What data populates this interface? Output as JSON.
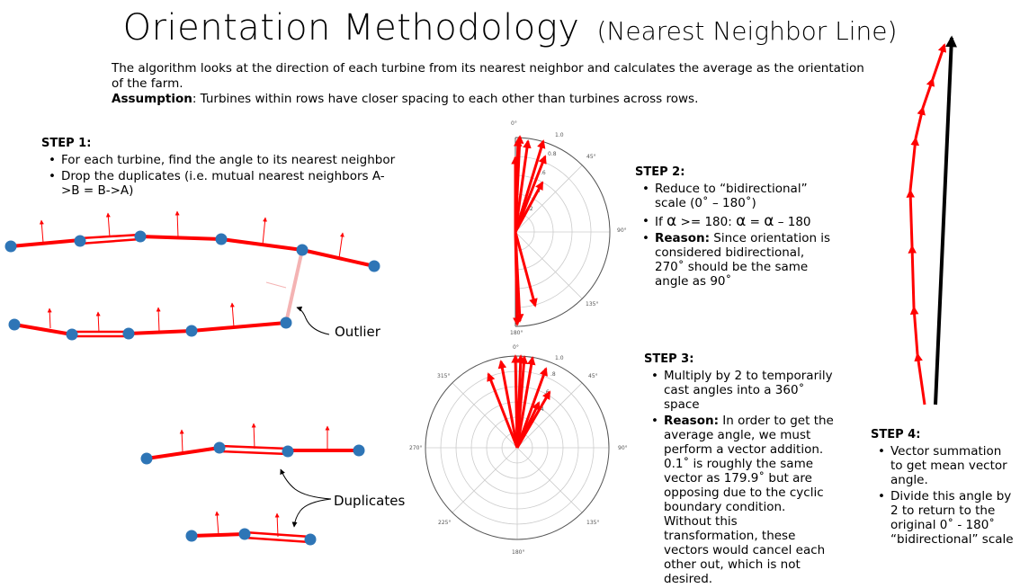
{
  "title": {
    "main": "Orientation Methodology",
    "sub": "(Nearest Neighbor Line)"
  },
  "intro": {
    "line1": "The algorithm looks at the direction of each turbine from its nearest neighbor and calculates the average as the orientation of the farm.",
    "assumption_label": "Assumption",
    "assumption_text": ": Turbines within rows have closer spacing to each other than turbines across rows."
  },
  "step1": {
    "heading": "STEP 1:",
    "bullets": [
      "For each turbine, find the angle to its nearest neighbor",
      "Drop the duplicates (i.e. mutual nearest neighbors A->B = B->A)"
    ]
  },
  "step2": {
    "heading": "STEP 2:",
    "b1": "Reduce to “bidirectional” scale     (0˚ – 180˚)",
    "b2_prefix": "If ",
    "b2_alpha1": "α",
    "b2_mid": " >= 180:   ",
    "b2_alpha2": "α",
    "b2_eq": " = ",
    "b2_alpha3": "α",
    "b2_suffix": " – 180",
    "b3_label": "Reason:",
    "b3_text": " Since orientation is considered bidirectional, 270˚ should be the same angle as 90˚"
  },
  "step3": {
    "heading": "STEP 3:",
    "b1": "Multiply by 2 to temporarily cast angles into a 360˚ space",
    "b2_label": "Reason:",
    "b2_text": " In order to get the average angle, we must perform a vector addition. 0.1˚ is roughly the same vector as 179.9˚ but are opposing due to the cyclic boundary condition. Without this transformation, these vectors would cancel each other out, which is not desired."
  },
  "step4": {
    "heading": "STEP 4:",
    "bullets": [
      "Vector summation to get mean vector angle.",
      "Divide this angle by 2 to return to the original 0˚ - 180˚ “bidirectional” scale"
    ]
  },
  "labels": {
    "outlier": "Outlier",
    "duplicates": "Duplicates"
  },
  "polar_half": {
    "angle_labels": [
      "0°",
      "45°",
      "90°",
      "135°",
      "180°"
    ],
    "radial_labels": [
      "1.0",
      "0.8",
      ".6",
      ".4",
      ".2"
    ]
  },
  "polar_full": {
    "angle_labels": [
      "0°",
      "45°",
      "90°",
      "135°",
      "180°",
      "225°",
      "270°",
      "315°"
    ],
    "radial_labels": [
      "1.0",
      ".8",
      ".6",
      ".4"
    ]
  },
  "colors": {
    "vector": "#ff0000",
    "turbine": "#2e75b6",
    "link_outlier": "#f4b3b3",
    "mean_vector": "#000000"
  }
}
